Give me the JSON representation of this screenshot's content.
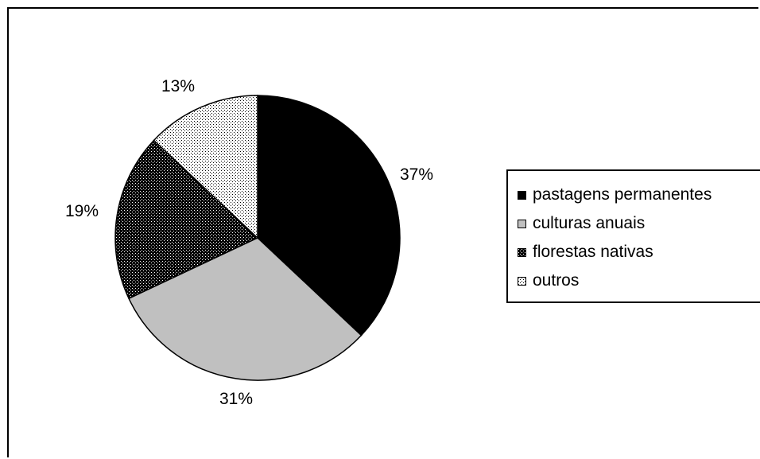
{
  "chart_data": {
    "type": "pie",
    "title": "",
    "categories": [
      "pastagens permanentes",
      "culturas anuais",
      "florestas nativas",
      "outros"
    ],
    "values": [
      37,
      31,
      19,
      13
    ],
    "labels": [
      "37%",
      "31%",
      "19%",
      "13%"
    ],
    "legend_position": "right",
    "slice_styles": [
      {
        "fill": "#000000",
        "pattern": "solid"
      },
      {
        "fill": "#c0c0c0",
        "pattern": "solid"
      },
      {
        "fill": "#000000",
        "pattern": "checker-dark"
      },
      {
        "fill": "#ffffff",
        "pattern": "dots-light"
      }
    ]
  }
}
